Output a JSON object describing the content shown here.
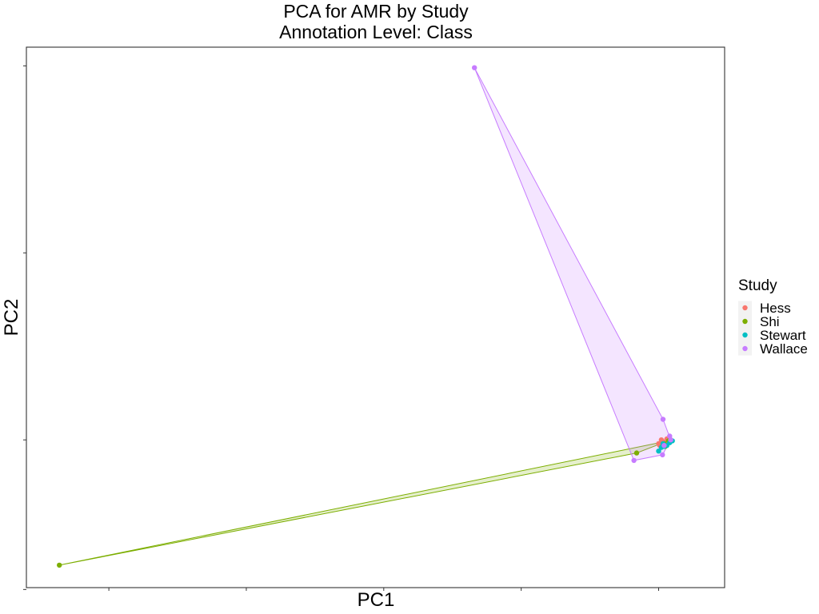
{
  "chart_data": {
    "type": "scatter",
    "title": "PCA for AMR by Study",
    "subtitle": "Annotation Level: Class",
    "xlabel": "PC1",
    "ylabel": "PC2",
    "xlim": [
      -1.15,
      0.12
    ],
    "ylim": [
      -0.79,
      2.1
    ],
    "x_ticks": [
      -1.0,
      -0.75,
      -0.5,
      -0.25,
      0.0
    ],
    "y_ticks": [
      -0.8,
      0.0,
      1.0,
      2.0
    ],
    "show_tick_labels": false,
    "grid": false,
    "legend": {
      "title": "Study",
      "position": "right",
      "entries": [
        "Hess",
        "Shi",
        "Stewart",
        "Wallace"
      ]
    },
    "colors": {
      "Hess": "#F8766D",
      "Shi": "#7CAE00",
      "Stewart": "#00BFC4",
      "Wallace": "#C77CFF"
    },
    "series": [
      {
        "name": "Hess",
        "points": [
          [
            0.0,
            -0.02
          ],
          [
            0.005,
            0.0
          ],
          [
            0.008,
            -0.01
          ],
          [
            0.012,
            -0.025
          ],
          [
            0.002,
            -0.03
          ],
          [
            0.015,
            0.005
          ]
        ]
      },
      {
        "name": "Shi",
        "points": [
          [
            -1.09,
            -0.67
          ],
          [
            -0.04,
            -0.07
          ],
          [
            0.01,
            -0.02
          ],
          [
            0.018,
            -0.005
          ],
          [
            0.022,
            0.0
          ],
          [
            0.012,
            -0.035
          ]
        ],
        "hull": [
          [
            -1.09,
            -0.67
          ],
          [
            -0.04,
            -0.07
          ],
          [
            0.022,
            0.0
          ],
          [
            0.018,
            -0.005
          ]
        ]
      },
      {
        "name": "Stewart",
        "points": [
          [
            0.0,
            -0.06
          ],
          [
            0.005,
            -0.04
          ],
          [
            0.01,
            -0.035
          ],
          [
            0.02,
            -0.015
          ],
          [
            0.025,
            -0.005
          ],
          [
            0.015,
            -0.03
          ],
          [
            0.008,
            -0.02
          ]
        ],
        "hull": [
          [
            0.0,
            -0.06
          ],
          [
            0.025,
            -0.005
          ],
          [
            0.02,
            -0.015
          ]
        ]
      },
      {
        "name": "Wallace",
        "points": [
          [
            -0.335,
            1.99
          ],
          [
            0.008,
            0.11
          ],
          [
            0.02,
            0.02
          ],
          [
            0.022,
            0.0
          ],
          [
            0.007,
            -0.08
          ],
          [
            -0.045,
            -0.11
          ],
          [
            0.01,
            -0.03
          ]
        ],
        "hull": [
          [
            -0.335,
            1.99
          ],
          [
            0.008,
            0.11
          ],
          [
            0.022,
            0.0
          ],
          [
            0.007,
            -0.08
          ],
          [
            -0.045,
            -0.11
          ]
        ]
      }
    ]
  }
}
